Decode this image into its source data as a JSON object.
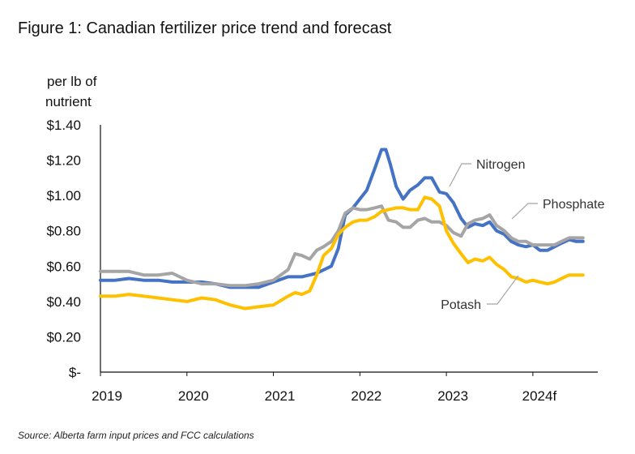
{
  "figure": {
    "title": "Figure 1: Canadian fertilizer price trend and forecast",
    "source": "Source: Alberta farm input prices and FCC calculations"
  },
  "chart_data": {
    "type": "line",
    "ylabel_lines": [
      "per lb of",
      "nutrient"
    ],
    "ylim": [
      0,
      1.4
    ],
    "xlim": [
      2019,
      2024.75
    ],
    "yticks": [
      {
        "value": 1.4,
        "label": "$1.40"
      },
      {
        "value": 1.2,
        "label": "$1.20"
      },
      {
        "value": 1.0,
        "label": "$1.00"
      },
      {
        "value": 0.8,
        "label": "$0.80"
      },
      {
        "value": 0.6,
        "label": "$0.60"
      },
      {
        "value": 0.4,
        "label": "$0.40"
      },
      {
        "value": 0.2,
        "label": "$0.20"
      },
      {
        "value": 0,
        "label": "$-"
      }
    ],
    "xticks": [
      {
        "value": 2019,
        "label": "2019"
      },
      {
        "value": 2020,
        "label": "2020"
      },
      {
        "value": 2021,
        "label": "2021"
      },
      {
        "value": 2022,
        "label": "2022"
      },
      {
        "value": 2023,
        "label": "2023"
      },
      {
        "value": 2024,
        "label": "2024f"
      }
    ],
    "grid": false,
    "legend": "inline labels",
    "series": [
      {
        "name": "Nitrogen",
        "color": "#4472C4",
        "x": [
          2019.0,
          2019.17,
          2019.33,
          2019.5,
          2019.67,
          2019.83,
          2020.0,
          2020.17,
          2020.33,
          2020.5,
          2020.67,
          2020.83,
          2021.0,
          2021.17,
          2021.33,
          2021.5,
          2021.67,
          2021.75,
          2021.83,
          2021.92,
          2022.0,
          2022.08,
          2022.17,
          2022.25,
          2022.3,
          2022.35,
          2022.42,
          2022.5,
          2022.58,
          2022.67,
          2022.75,
          2022.83,
          2022.92,
          2023.0,
          2023.08,
          2023.17,
          2023.25,
          2023.33,
          2023.42,
          2023.5,
          2023.58,
          2023.67,
          2023.75,
          2023.83,
          2023.92,
          2024.0,
          2024.08,
          2024.17,
          2024.25,
          2024.33,
          2024.42,
          2024.5,
          2024.58
        ],
        "y": [
          0.52,
          0.52,
          0.53,
          0.52,
          0.52,
          0.51,
          0.51,
          0.51,
          0.5,
          0.48,
          0.48,
          0.48,
          0.51,
          0.54,
          0.54,
          0.56,
          0.6,
          0.7,
          0.89,
          0.93,
          0.98,
          1.03,
          1.15,
          1.26,
          1.26,
          1.18,
          1.05,
          0.98,
          1.03,
          1.06,
          1.1,
          1.1,
          1.02,
          1.01,
          0.96,
          0.87,
          0.82,
          0.84,
          0.83,
          0.85,
          0.8,
          0.78,
          0.74,
          0.72,
          0.71,
          0.72,
          0.69,
          0.69,
          0.71,
          0.73,
          0.75,
          0.74,
          0.74
        ]
      },
      {
        "name": "Phosphate",
        "color": "#A5A5A5",
        "x": [
          2019.0,
          2019.17,
          2019.33,
          2019.5,
          2019.67,
          2019.83,
          2020.0,
          2020.17,
          2020.33,
          2020.5,
          2020.67,
          2020.83,
          2021.0,
          2021.17,
          2021.25,
          2021.33,
          2021.42,
          2021.5,
          2021.58,
          2021.67,
          2021.75,
          2021.83,
          2021.92,
          2022.0,
          2022.08,
          2022.17,
          2022.25,
          2022.33,
          2022.42,
          2022.5,
          2022.58,
          2022.67,
          2022.75,
          2022.83,
          2022.92,
          2023.0,
          2023.08,
          2023.17,
          2023.25,
          2023.33,
          2023.42,
          2023.5,
          2023.58,
          2023.67,
          2023.75,
          2023.83,
          2023.92,
          2024.0,
          2024.08,
          2024.17,
          2024.25,
          2024.33,
          2024.42,
          2024.5,
          2024.58
        ],
        "y": [
          0.57,
          0.57,
          0.57,
          0.55,
          0.55,
          0.56,
          0.52,
          0.5,
          0.5,
          0.49,
          0.49,
          0.5,
          0.52,
          0.58,
          0.67,
          0.66,
          0.64,
          0.69,
          0.71,
          0.74,
          0.8,
          0.9,
          0.93,
          0.92,
          0.92,
          0.93,
          0.94,
          0.86,
          0.85,
          0.82,
          0.82,
          0.86,
          0.87,
          0.85,
          0.85,
          0.83,
          0.79,
          0.77,
          0.84,
          0.86,
          0.87,
          0.89,
          0.83,
          0.8,
          0.76,
          0.74,
          0.74,
          0.72,
          0.72,
          0.72,
          0.72,
          0.74,
          0.76,
          0.76,
          0.76
        ]
      },
      {
        "name": "Potash",
        "color": "#FFC000",
        "x": [
          2019.0,
          2019.17,
          2019.33,
          2019.5,
          2019.67,
          2019.83,
          2020.0,
          2020.17,
          2020.33,
          2020.5,
          2020.67,
          2020.83,
          2021.0,
          2021.17,
          2021.25,
          2021.33,
          2021.42,
          2021.5,
          2021.58,
          2021.67,
          2021.75,
          2021.83,
          2021.92,
          2022.0,
          2022.08,
          2022.17,
          2022.25,
          2022.33,
          2022.42,
          2022.5,
          2022.58,
          2022.67,
          2022.75,
          2022.83,
          2022.92,
          2023.0,
          2023.08,
          2023.17,
          2023.25,
          2023.33,
          2023.42,
          2023.5,
          2023.58,
          2023.67,
          2023.75,
          2023.83,
          2023.92,
          2024.0,
          2024.08,
          2024.17,
          2024.25,
          2024.33,
          2024.42,
          2024.5,
          2024.58
        ],
        "y": [
          0.43,
          0.43,
          0.44,
          0.43,
          0.42,
          0.41,
          0.4,
          0.42,
          0.41,
          0.38,
          0.36,
          0.37,
          0.38,
          0.43,
          0.45,
          0.44,
          0.46,
          0.55,
          0.66,
          0.7,
          0.78,
          0.82,
          0.85,
          0.86,
          0.86,
          0.88,
          0.91,
          0.92,
          0.93,
          0.93,
          0.92,
          0.92,
          0.99,
          0.98,
          0.94,
          0.8,
          0.73,
          0.67,
          0.62,
          0.64,
          0.63,
          0.65,
          0.61,
          0.58,
          0.54,
          0.53,
          0.51,
          0.52,
          0.51,
          0.5,
          0.51,
          0.53,
          0.55,
          0.55,
          0.55
        ]
      }
    ],
    "annotations": [
      {
        "text": "Nitrogen",
        "series": "Nitrogen"
      },
      {
        "text": "Phosphate",
        "series": "Phosphate"
      },
      {
        "text": "Potash",
        "series": "Potash"
      }
    ]
  }
}
